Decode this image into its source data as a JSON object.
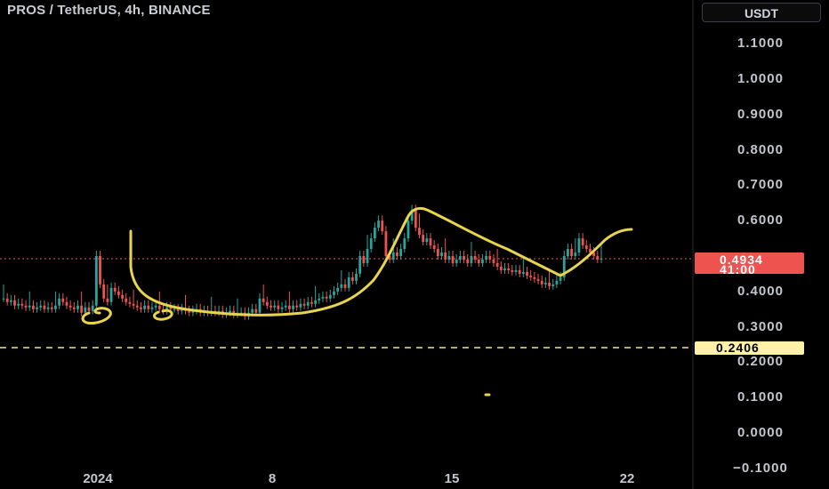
{
  "header": {
    "title": "PROS / TetherUS, 4h, BINANCE"
  },
  "scale": {
    "currency_label": "USDT"
  },
  "price": {
    "last": "0.4934",
    "countdown": "41:00"
  },
  "horizontal_line": {
    "label": "0.2406"
  },
  "colors": {
    "up": "#26a69a",
    "down": "#ef5350",
    "drawing": "#e8d44d",
    "dash": "#f0e68c"
  },
  "chart_data": {
    "type": "candlestick",
    "symbol": "PROS / TetherUS",
    "interval": "4h",
    "exchange": "BINANCE",
    "y_ticks": [
      "1.1000",
      "1.0000",
      "0.9000",
      "0.8000",
      "0.7000",
      "0.6000",
      "0.4000",
      "0.3000",
      "0.2000",
      "0.1000",
      "0.0000",
      "−0.1000"
    ],
    "x_ticks": [
      "2024",
      "8",
      "15",
      "22"
    ],
    "ylim": [
      -0.1,
      1.15
    ],
    "last_price": 0.4934,
    "horizontal_line": 0.2406,
    "closes": [
      0.38,
      0.37,
      0.375,
      0.36,
      0.365,
      0.36,
      0.355,
      0.36,
      0.35,
      0.355,
      0.36,
      0.35,
      0.355,
      0.35,
      0.36,
      0.38,
      0.37,
      0.36,
      0.355,
      0.35,
      0.36,
      0.34,
      0.355,
      0.345,
      0.36,
      0.5,
      0.42,
      0.38,
      0.37,
      0.41,
      0.4,
      0.39,
      0.38,
      0.37,
      0.365,
      0.36,
      0.355,
      0.35,
      0.36,
      0.35,
      0.355,
      0.36,
      0.35,
      0.345,
      0.355,
      0.35,
      0.35,
      0.345,
      0.35,
      0.345,
      0.34,
      0.345,
      0.35,
      0.34,
      0.345,
      0.34,
      0.345,
      0.34,
      0.345,
      0.335,
      0.34,
      0.345,
      0.335,
      0.34,
      0.34,
      0.33,
      0.34,
      0.35,
      0.34,
      0.38,
      0.37,
      0.36,
      0.355,
      0.36,
      0.35,
      0.355,
      0.36,
      0.35,
      0.36,
      0.355,
      0.365,
      0.36,
      0.37,
      0.365,
      0.375,
      0.38,
      0.385,
      0.38,
      0.39,
      0.4,
      0.41,
      0.42,
      0.41,
      0.44,
      0.43,
      0.45,
      0.5,
      0.48,
      0.52,
      0.55,
      0.58,
      0.6,
      0.57,
      0.5,
      0.49,
      0.51,
      0.5,
      0.52,
      0.55,
      0.6,
      0.63,
      0.58,
      0.56,
      0.54,
      0.55,
      0.53,
      0.52,
      0.5,
      0.51,
      0.49,
      0.5,
      0.48,
      0.49,
      0.5,
      0.49,
      0.48,
      0.5,
      0.49,
      0.48,
      0.49,
      0.5,
      0.49,
      0.48,
      0.47,
      0.46,
      0.465,
      0.46,
      0.455,
      0.46,
      0.45,
      0.455,
      0.445,
      0.44,
      0.435,
      0.43,
      0.42,
      0.425,
      0.415,
      0.42,
      0.43,
      0.44,
      0.5,
      0.52,
      0.5,
      0.51,
      0.55,
      0.53,
      0.52,
      0.51,
      0.5,
      0.49,
      0.4934
    ],
    "drawing": "freehand yellow curve tracing a cup and handle shape"
  }
}
